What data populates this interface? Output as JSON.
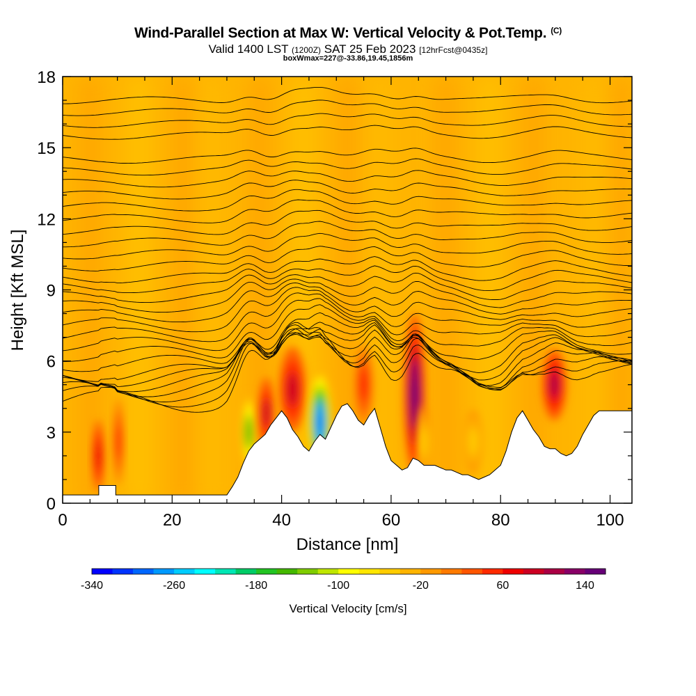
{
  "header": {
    "title": "Wind-Parallel Section at Max W: Vertical Velocity & Pot.Temp.",
    "copyright": "(C)",
    "valid_prefix": "Valid 1400 LST",
    "valid_utc": "(1200Z)",
    "valid_date": "SAT 25 Feb 2023",
    "forecast": "[12hrFcst@0435z]",
    "box_info": "boxWmax=227@-33.86,19.45,1856m"
  },
  "chart_data": {
    "type": "heatmap",
    "xlabel": "Distance [nm]",
    "ylabel": "Height [Kft MSL]",
    "xlim": [
      0,
      104
    ],
    "ylim": [
      0,
      18
    ],
    "x_ticks": [
      0,
      20,
      40,
      60,
      80,
      100
    ],
    "y_ticks": [
      0,
      3,
      6,
      9,
      12,
      15,
      18
    ],
    "colorbar": {
      "label": "Vertical Velocity [cm/s]",
      "min": -340,
      "max": 160,
      "step": 20,
      "tick_values": [
        -340,
        -260,
        -180,
        -100,
        -20,
        60,
        140
      ],
      "tick_labels": [
        "-340",
        "-260",
        "-180",
        "-100",
        "-20",
        "60",
        "140"
      ],
      "colors": [
        "#0000ff",
        "#0033ff",
        "#0066ff",
        "#0099ff",
        "#00ccff",
        "#00ffff",
        "#00e6b4",
        "#00cc66",
        "#22c422",
        "#44b800",
        "#7fcc00",
        "#bfe600",
        "#ffff00",
        "#ffe600",
        "#ffcc00",
        "#ffb400",
        "#ff9900",
        "#ff7a00",
        "#ff5500",
        "#ff2a00",
        "#ee0000",
        "#cc0022",
        "#aa0044",
        "#880066",
        "#660077"
      ]
    },
    "terrain_kft": [
      [
        0,
        0.35
      ],
      [
        6.6,
        0.35
      ],
      [
        6.6,
        0.75
      ],
      [
        9.7,
        0.75
      ],
      [
        9.7,
        0.35
      ],
      [
        30,
        0.35
      ],
      [
        31,
        0.7
      ],
      [
        32,
        1.1
      ],
      [
        33,
        1.7
      ],
      [
        34,
        2.2
      ],
      [
        35,
        2.5
      ],
      [
        36,
        2.7
      ],
      [
        37,
        2.9
      ],
      [
        38,
        3.3
      ],
      [
        39,
        3.6
      ],
      [
        40,
        3.9
      ],
      [
        41,
        3.6
      ],
      [
        42,
        3.1
      ],
      [
        43,
        2.8
      ],
      [
        44,
        2.4
      ],
      [
        45,
        2.2
      ],
      [
        46,
        2.6
      ],
      [
        47,
        2.9
      ],
      [
        48,
        2.7
      ],
      [
        49,
        3.2
      ],
      [
        50,
        3.7
      ],
      [
        51,
        4.1
      ],
      [
        52,
        4.2
      ],
      [
        53,
        3.9
      ],
      [
        54,
        3.5
      ],
      [
        55,
        3.3
      ],
      [
        56,
        3.7
      ],
      [
        57,
        4.0
      ],
      [
        58,
        3.2
      ],
      [
        59,
        2.4
      ],
      [
        60,
        1.8
      ],
      [
        61,
        1.6
      ],
      [
        62,
        1.4
      ],
      [
        63,
        1.5
      ],
      [
        64,
        1.9
      ],
      [
        65,
        1.8
      ],
      [
        66,
        1.6
      ],
      [
        67,
        1.6
      ],
      [
        68,
        1.6
      ],
      [
        69,
        1.5
      ],
      [
        70,
        1.4
      ],
      [
        71,
        1.4
      ],
      [
        72,
        1.3
      ],
      [
        73,
        1.2
      ],
      [
        74,
        1.2
      ],
      [
        75,
        1.1
      ],
      [
        76,
        1.0
      ],
      [
        77,
        1.1
      ],
      [
        78,
        1.2
      ],
      [
        79,
        1.4
      ],
      [
        80,
        1.6
      ],
      [
        81,
        2.2
      ],
      [
        82,
        3.0
      ],
      [
        83,
        3.6
      ],
      [
        84,
        3.9
      ],
      [
        85,
        3.5
      ],
      [
        86,
        3.1
      ],
      [
        87,
        2.8
      ],
      [
        88,
        2.4
      ],
      [
        89,
        2.3
      ],
      [
        90,
        2.3
      ],
      [
        91,
        2.1
      ],
      [
        92,
        2.0
      ],
      [
        93,
        2.1
      ],
      [
        94,
        2.4
      ],
      [
        95,
        2.9
      ],
      [
        96,
        3.3
      ],
      [
        97,
        3.7
      ],
      [
        98,
        3.9
      ],
      [
        104,
        3.9
      ]
    ],
    "w_cells": [
      {
        "x": 6.5,
        "y": 2.0,
        "value": 60
      },
      {
        "x": 10.2,
        "y": 2.6,
        "value": 40
      },
      {
        "x": 34.0,
        "y": 3.0,
        "value": -160
      },
      {
        "x": 37.2,
        "y": 3.8,
        "value": 80
      },
      {
        "x": 42.0,
        "y": 4.8,
        "value": 80
      },
      {
        "x": 47.0,
        "y": 3.4,
        "value": -300
      },
      {
        "x": 55.0,
        "y": 5.0,
        "value": 40
      },
      {
        "x": 64.3,
        "y": 4.6,
        "value": 140
      },
      {
        "x": 66.0,
        "y": 2.6,
        "value": -60
      },
      {
        "x": 75.0,
        "y": 2.6,
        "value": -60
      },
      {
        "x": 89.8,
        "y": 5.0,
        "value": 100
      }
    ],
    "theta_contours": {
      "levels_k": [
        304,
        306,
        308,
        310,
        312,
        314,
        316,
        318,
        320,
        322,
        324,
        326,
        328,
        330,
        332,
        334,
        336,
        338,
        340,
        342,
        344,
        346,
        348,
        350,
        352,
        354,
        356,
        358,
        360,
        362,
        364
      ],
      "surface_height_kft": [
        4.3,
        4.5,
        4.7,
        4.9,
        5.1,
        5.3,
        5.5,
        5.9,
        6.3,
        6.7,
        7.1,
        7.5,
        7.9,
        8.3,
        8.7,
        9.1,
        9.5,
        10.0,
        10.5,
        11.0,
        11.5,
        12.0,
        12.5,
        13.0,
        13.5,
        14.0,
        14.5,
        15.5,
        16.0,
        16.5,
        17.0
      ]
    }
  }
}
